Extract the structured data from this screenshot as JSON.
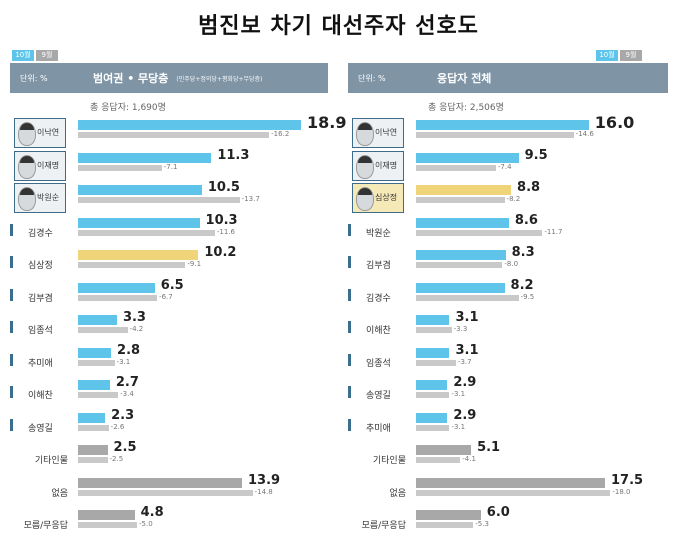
{
  "title": "범진보 차기 대선주자 선호도",
  "colors": {
    "current": "#5ec4ea",
    "highlight": "#f0d479",
    "other": "#a8a8a8",
    "prev": "#c9c9c9",
    "header": "#7f95a6"
  },
  "legend": {
    "current": "10월",
    "prev": "9월"
  },
  "chart_data": [
    {
      "type": "bar",
      "title": "범여권 • 무당층",
      "subtitle": "(민주당+정의당+평화당+무당층)",
      "unit": "단위: %",
      "total": "총 응답자: 1,690명",
      "categories": [
        "이낙연",
        "이재명",
        "박원순",
        "김경수",
        "심상정",
        "김부겸",
        "임종석",
        "추미애",
        "이해찬",
        "송영길",
        "기타인물",
        "없음",
        "모름/무응답"
      ],
      "series": [
        {
          "name": "10월",
          "values": [
            18.9,
            11.3,
            10.5,
            10.3,
            10.2,
            6.5,
            3.3,
            2.8,
            2.7,
            2.3,
            2.5,
            13.9,
            4.8
          ]
        },
        {
          "name": "9월",
          "values": [
            16.2,
            7.1,
            13.7,
            11.6,
            9.1,
            6.7,
            4.2,
            3.1,
            3.4,
            2.6,
            2.5,
            14.8,
            5.0
          ]
        }
      ],
      "highlight": [
        4
      ],
      "other": [
        10,
        11,
        12
      ],
      "photos": [
        0,
        1,
        2
      ]
    },
    {
      "type": "bar",
      "title": "응답자 전체",
      "unit": "단위: %",
      "total": "총 응답자: 2,506명",
      "categories": [
        "이낙연",
        "이재명",
        "심상정",
        "박원순",
        "김부겸",
        "김경수",
        "이해찬",
        "임종석",
        "송영길",
        "추미애",
        "기타인물",
        "없음",
        "모름/무응답"
      ],
      "series": [
        {
          "name": "10월",
          "values": [
            16.0,
            9.5,
            8.8,
            8.6,
            8.3,
            8.2,
            3.1,
            3.1,
            2.9,
            2.9,
            5.1,
            17.5,
            6.0
          ]
        },
        {
          "name": "9월",
          "values": [
            14.6,
            7.4,
            8.2,
            11.7,
            8.0,
            9.5,
            3.3,
            3.7,
            3.1,
            3.1,
            4.1,
            18.0,
            5.3
          ]
        }
      ],
      "highlight": [
        2
      ],
      "other": [
        10,
        11,
        12
      ],
      "photos": [
        0,
        1,
        2
      ]
    }
  ]
}
